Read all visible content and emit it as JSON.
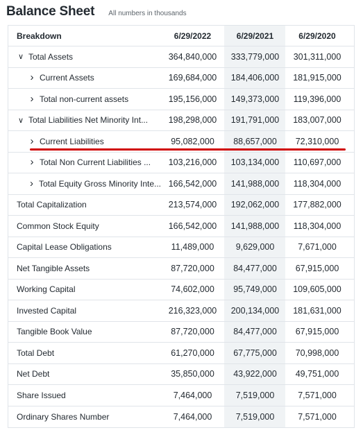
{
  "header": {
    "title": "Balance Sheet",
    "subtitle": "All numbers in thousands"
  },
  "columns": [
    "Breakdown",
    "6/29/2022",
    "6/29/2021",
    "6/29/2020"
  ],
  "colors": {
    "highlight_line": "#d00000",
    "shaded_column": "#f0f3f5"
  },
  "rows": [
    {
      "label": "Total Assets",
      "expand": "down",
      "values": [
        "364,840,000",
        "333,779,000",
        "301,311,000"
      ]
    },
    {
      "label": "Current Assets",
      "expand": "right",
      "values": [
        "169,684,000",
        "184,406,000",
        "181,915,000"
      ]
    },
    {
      "label": "Total non-current assets",
      "expand": "right",
      "values": [
        "195,156,000",
        "149,373,000",
        "119,396,000"
      ]
    },
    {
      "label": "Total Liabilities Net Minority Int...",
      "expand": "down",
      "values": [
        "198,298,000",
        "191,791,000",
        "183,007,000"
      ]
    },
    {
      "label": "Current Liabilities",
      "expand": "right",
      "values": [
        "95,082,000",
        "88,657,000",
        "72,310,000"
      ]
    },
    {
      "label": "Total Non Current Liabilities ...",
      "expand": "right",
      "values": [
        "103,216,000",
        "103,134,000",
        "110,697,000"
      ]
    },
    {
      "label": "Total Equity Gross Minority Inte...",
      "expand": "right",
      "values": [
        "166,542,000",
        "141,988,000",
        "118,304,000"
      ]
    },
    {
      "label": "Total Capitalization",
      "expand": "",
      "values": [
        "213,574,000",
        "192,062,000",
        "177,882,000"
      ]
    },
    {
      "label": "Common Stock Equity",
      "expand": "",
      "values": [
        "166,542,000",
        "141,988,000",
        "118,304,000"
      ]
    },
    {
      "label": "Capital Lease Obligations",
      "expand": "",
      "values": [
        "11,489,000",
        "9,629,000",
        "7,671,000"
      ]
    },
    {
      "label": "Net Tangible Assets",
      "expand": "",
      "values": [
        "87,720,000",
        "84,477,000",
        "67,915,000"
      ]
    },
    {
      "label": "Working Capital",
      "expand": "",
      "values": [
        "74,602,000",
        "95,749,000",
        "109,605,000"
      ]
    },
    {
      "label": "Invested Capital",
      "expand": "",
      "values": [
        "216,323,000",
        "200,134,000",
        "181,631,000"
      ]
    },
    {
      "label": "Tangible Book Value",
      "expand": "",
      "values": [
        "87,720,000",
        "84,477,000",
        "67,915,000"
      ]
    },
    {
      "label": "Total Debt",
      "expand": "",
      "values": [
        "61,270,000",
        "67,775,000",
        "70,998,000"
      ]
    },
    {
      "label": "Net Debt",
      "expand": "",
      "values": [
        "35,850,000",
        "43,922,000",
        "49,751,000"
      ]
    },
    {
      "label": "Share Issued",
      "expand": "",
      "values": [
        "7,464,000",
        "7,519,000",
        "7,571,000"
      ]
    },
    {
      "label": "Ordinary Shares Number",
      "expand": "",
      "values": [
        "7,464,000",
        "7,519,000",
        "7,571,000"
      ]
    }
  ]
}
